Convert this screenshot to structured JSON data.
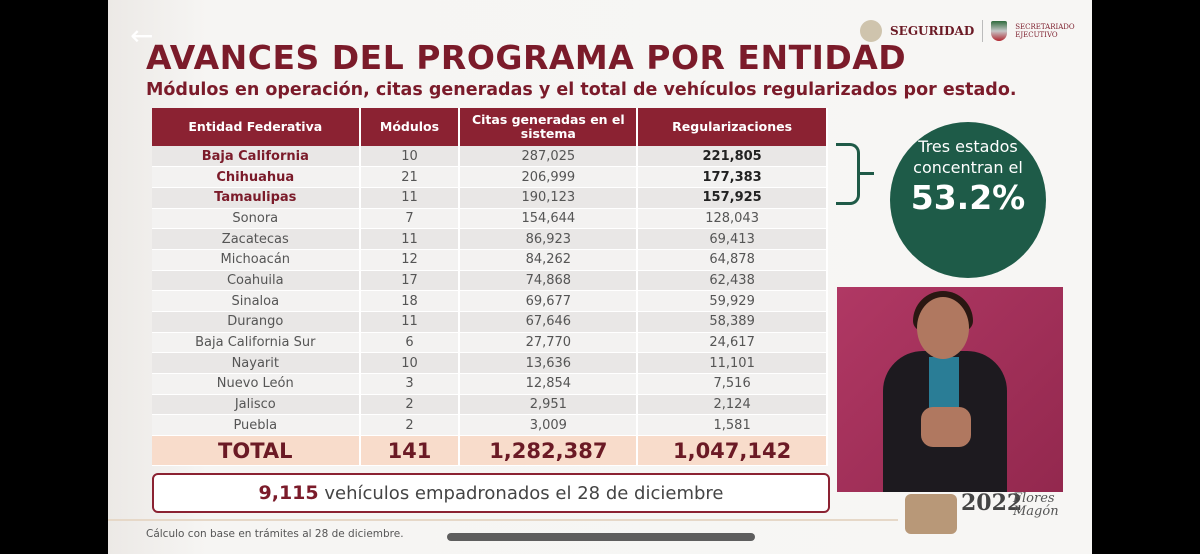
{
  "player": {
    "back_icon": "arrow-left-icon"
  },
  "slide": {
    "title": "AVANCES DEL PROGRAMA POR ENTIDAD",
    "subtitle": "Módulos en operación, citas generadas y el total de vehículos regularizados por estado.",
    "logos": {
      "seguridad": "SEGURIDAD",
      "secretariado": "SECRETARIADO EJECUTIVO"
    },
    "table": {
      "headers": [
        "Entidad Federativa",
        "Módulos",
        "Citas generadas en el sistema",
        "Regularizaciones"
      ],
      "rows": [
        [
          "Baja California",
          "10",
          "287,025",
          "221,805"
        ],
        [
          "Chihuahua",
          "21",
          "206,999",
          "177,383"
        ],
        [
          "Tamaulipas",
          "11",
          "190,123",
          "157,925"
        ],
        [
          "Sonora",
          "7",
          "154,644",
          "128,043"
        ],
        [
          "Zacatecas",
          "11",
          "86,923",
          "69,413"
        ],
        [
          "Michoacán",
          "12",
          "84,262",
          "64,878"
        ],
        [
          "Coahuila",
          "17",
          "74,868",
          "62,438"
        ],
        [
          "Sinaloa",
          "18",
          "69,677",
          "59,929"
        ],
        [
          "Durango",
          "11",
          "67,646",
          "58,389"
        ],
        [
          "Baja California Sur",
          "6",
          "27,770",
          "24,617"
        ],
        [
          "Nayarit",
          "10",
          "13,636",
          "11,101"
        ],
        [
          "Nuevo León",
          "3",
          "12,854",
          "7,516"
        ],
        [
          "Jalisco",
          "2",
          "2,951",
          "2,124"
        ],
        [
          "Puebla",
          "2",
          "3,009",
          "1,581"
        ]
      ],
      "total": [
        "TOTAL",
        "141",
        "1,282,387",
        "1,047,142"
      ]
    },
    "callout": {
      "text": "Tres estados concentran el",
      "percent": "53.2%"
    },
    "note": {
      "number": "9,115",
      "text": "vehículos empadronados el 28 de diciembre"
    },
    "footer": "Cálculo con base en trámites al 28 de diciembre.",
    "year_logo": {
      "year": "2022",
      "name": "Flores Magón"
    },
    "colors": {
      "maroon": "#8b2232",
      "green": "#1e5b48",
      "total_bg": "#f8dccb"
    }
  }
}
